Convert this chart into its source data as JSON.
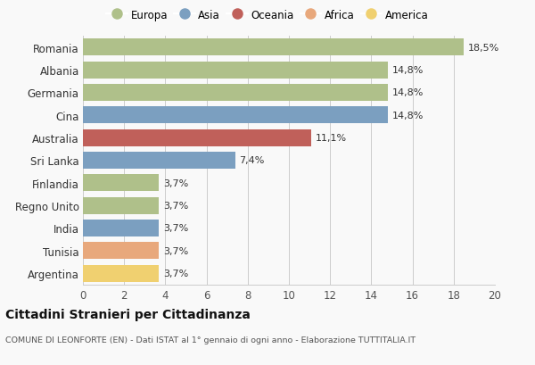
{
  "countries": [
    "Romania",
    "Albania",
    "Germania",
    "Cina",
    "Australia",
    "Sri Lanka",
    "Finlandia",
    "Regno Unito",
    "India",
    "Tunisia",
    "Argentina"
  ],
  "values": [
    18.5,
    14.8,
    14.8,
    14.8,
    11.1,
    7.4,
    3.7,
    3.7,
    3.7,
    3.7,
    3.7
  ],
  "labels": [
    "18,5%",
    "14,8%",
    "14,8%",
    "14,8%",
    "11,1%",
    "7,4%",
    "3,7%",
    "3,7%",
    "3,7%",
    "3,7%",
    "3,7%"
  ],
  "continents": [
    "Europa",
    "Europa",
    "Europa",
    "Asia",
    "Oceania",
    "Asia",
    "Europa",
    "Europa",
    "Asia",
    "Africa",
    "America"
  ],
  "colors": {
    "Europa": "#afc08a",
    "Asia": "#7b9fc0",
    "Oceania": "#c0605a",
    "Africa": "#e8a87c",
    "America": "#f0d070"
  },
  "legend_order": [
    "Europa",
    "Asia",
    "Oceania",
    "Africa",
    "America"
  ],
  "bg_color": "#f9f9f9",
  "title": "Cittadini Stranieri per Cittadinanza",
  "subtitle": "COMUNE DI LEONFORTE (EN) - Dati ISTAT al 1° gennaio di ogni anno - Elaborazione TUTTITALIA.IT",
  "xlim": [
    0,
    20
  ],
  "xticks": [
    0,
    2,
    4,
    6,
    8,
    10,
    12,
    14,
    16,
    18,
    20
  ]
}
